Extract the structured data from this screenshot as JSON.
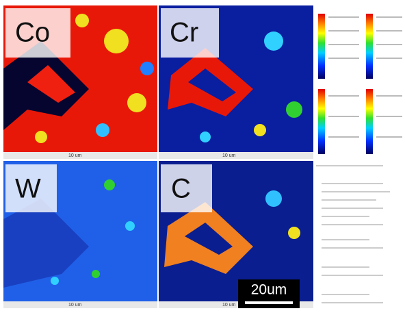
{
  "panels": [
    {
      "label": "Co",
      "scale": "10 um"
    },
    {
      "label": "Cr",
      "scale": "10 um"
    },
    {
      "label": "W",
      "scale": "10 um"
    },
    {
      "label": "C",
      "scale": "10 um"
    }
  ],
  "scale_bar": "20um"
}
